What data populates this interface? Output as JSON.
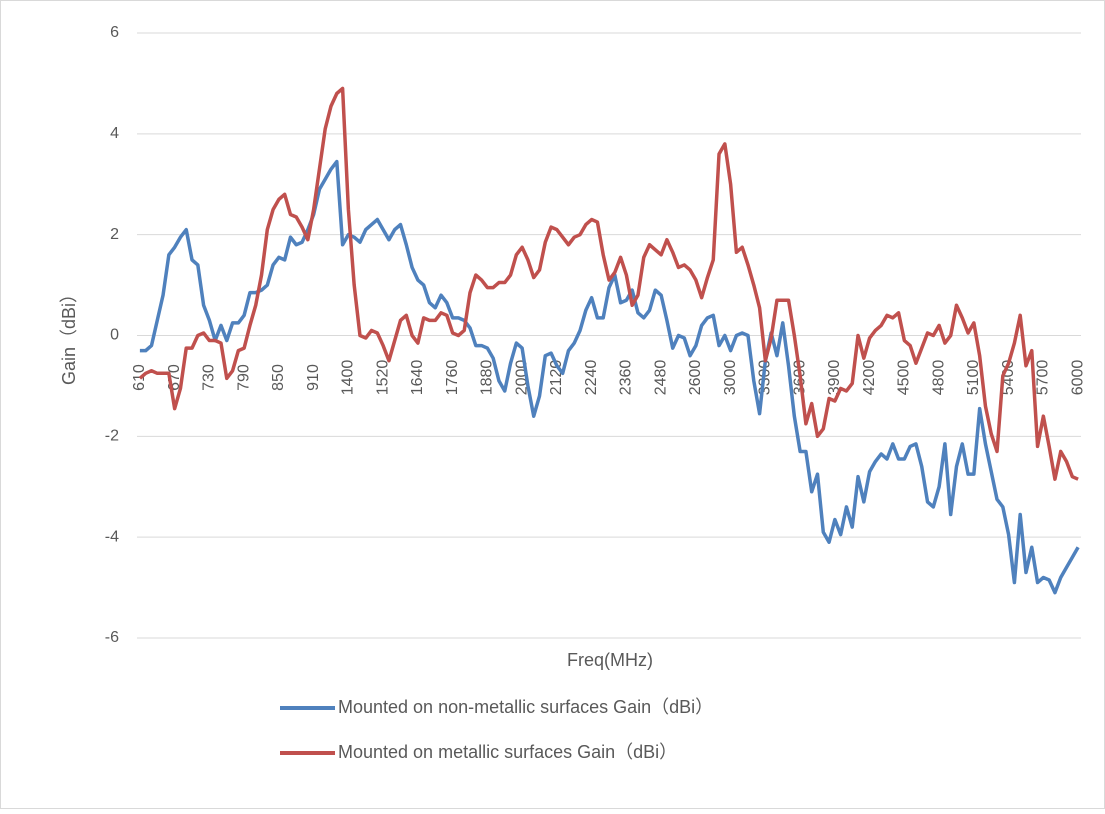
{
  "chart_data": {
    "type": "line",
    "x_label": "Freq(MHz)",
    "y_label": "Gain（dBi）",
    "categories": [
      "610",
      null,
      null,
      null,
      null,
      null,
      "670",
      null,
      null,
      null,
      null,
      null,
      "730",
      null,
      null,
      null,
      null,
      null,
      "790",
      null,
      null,
      null,
      null,
      null,
      "850",
      null,
      null,
      null,
      null,
      null,
      "910",
      null,
      null,
      null,
      null,
      null,
      "1400",
      null,
      null,
      null,
      null,
      null,
      "1520",
      null,
      null,
      null,
      null,
      null,
      "1640",
      null,
      null,
      null,
      null,
      null,
      "1760",
      null,
      null,
      null,
      null,
      null,
      "1880",
      null,
      null,
      null,
      null,
      null,
      "2000",
      null,
      null,
      null,
      null,
      null,
      "2120",
      null,
      null,
      null,
      null,
      null,
      "2240",
      null,
      null,
      null,
      null,
      null,
      "2360",
      null,
      null,
      null,
      null,
      null,
      "2480",
      null,
      null,
      null,
      null,
      null,
      "2600",
      null,
      null,
      null,
      null,
      null,
      "3000",
      null,
      null,
      null,
      null,
      null,
      "3300",
      null,
      null,
      null,
      null,
      null,
      "3600",
      null,
      null,
      null,
      null,
      null,
      "3900",
      null,
      null,
      null,
      null,
      null,
      "4200",
      null,
      null,
      null,
      null,
      null,
      "4500",
      null,
      null,
      null,
      null,
      null,
      "4800",
      null,
      null,
      null,
      null,
      null,
      "5100",
      null,
      null,
      null,
      null,
      null,
      "5400",
      null,
      null,
      null,
      null,
      null,
      "5700",
      null,
      null,
      null,
      null,
      null,
      "6000"
    ],
    "series": [
      {
        "name": "Mounted on non-metallic surfaces Gain（dBi）",
        "color": "#4f81bd",
        "values": [
          -0.3,
          -0.3,
          -0.2,
          0.3,
          0.8,
          1.6,
          1.75,
          1.95,
          2.1,
          1.5,
          1.4,
          0.6,
          0.3,
          -0.1,
          0.2,
          -0.1,
          0.25,
          0.25,
          0.4,
          0.85,
          0.85,
          0.9,
          1.0,
          1.4,
          1.55,
          1.5,
          1.95,
          1.8,
          1.85,
          2.1,
          2.4,
          2.9,
          3.1,
          3.3,
          3.45,
          1.8,
          2.0,
          1.95,
          1.85,
          2.1,
          2.2,
          2.3,
          2.1,
          1.9,
          2.1,
          2.2,
          1.8,
          1.35,
          1.1,
          1.0,
          0.65,
          0.55,
          0.8,
          0.65,
          0.35,
          0.35,
          0.3,
          0.15,
          -0.2,
          -0.2,
          -0.25,
          -0.45,
          -0.9,
          -1.1,
          -0.55,
          -0.15,
          -0.25,
          -1.0,
          -1.6,
          -1.2,
          -0.4,
          -0.35,
          -0.6,
          -0.75,
          -0.3,
          -0.15,
          0.1,
          0.5,
          0.75,
          0.35,
          0.35,
          0.95,
          1.2,
          0.65,
          0.7,
          0.9,
          0.45,
          0.35,
          0.5,
          0.9,
          0.8,
          0.3,
          -0.25,
          0.0,
          -0.05,
          -0.4,
          -0.2,
          0.2,
          0.35,
          0.4,
          -0.2,
          0.0,
          -0.3,
          0.0,
          0.05,
          0.0,
          -0.9,
          -1.55,
          -0.5,
          0.05,
          -0.4,
          0.25,
          -0.6,
          -1.6,
          -2.3,
          -2.3,
          -3.1,
          -2.75,
          -3.9,
          -4.1,
          -3.65,
          -3.95,
          -3.4,
          -3.8,
          -2.8,
          -3.3,
          -2.7,
          -2.5,
          -2.35,
          -2.45,
          -2.15,
          -2.45,
          -2.45,
          -2.2,
          -2.15,
          -2.6,
          -3.3,
          -3.4,
          -3.0,
          -2.15,
          -3.55,
          -2.6,
          -2.15,
          -2.75,
          -2.75,
          -1.45,
          -2.15,
          -2.7,
          -3.25,
          -3.4,
          -3.95,
          -4.9,
          -3.55,
          -4.7,
          -4.2,
          -4.9,
          -4.8,
          -4.85,
          -5.1,
          -4.8,
          -4.6,
          -4.4,
          -4.2
        ]
      },
      {
        "name": "Mounted on metallic surfaces Gain（dBi）",
        "color": "#c0504d",
        "values": [
          -0.85,
          -0.75,
          -0.7,
          -0.75,
          -0.75,
          -0.75,
          -1.45,
          -1.05,
          -0.25,
          -0.25,
          0.0,
          0.05,
          -0.1,
          -0.1,
          -0.15,
          -0.85,
          -0.7,
          -0.3,
          -0.25,
          0.2,
          0.6,
          1.2,
          2.1,
          2.5,
          2.7,
          2.8,
          2.4,
          2.35,
          2.15,
          1.9,
          2.5,
          3.3,
          4.1,
          4.55,
          4.8,
          4.9,
          2.5,
          1.0,
          0.0,
          -0.05,
          0.1,
          0.05,
          -0.2,
          -0.5,
          -0.1,
          0.3,
          0.4,
          0.0,
          -0.15,
          0.35,
          0.3,
          0.3,
          0.45,
          0.4,
          0.05,
          0.0,
          0.1,
          0.85,
          1.2,
          1.1,
          0.95,
          0.95,
          1.05,
          1.05,
          1.2,
          1.6,
          1.75,
          1.5,
          1.15,
          1.3,
          1.85,
          2.15,
          2.1,
          1.95,
          1.8,
          1.95,
          2.0,
          2.2,
          2.3,
          2.25,
          1.6,
          1.1,
          1.25,
          1.55,
          1.2,
          0.6,
          0.8,
          1.55,
          1.8,
          1.7,
          1.6,
          1.9,
          1.65,
          1.35,
          1.4,
          1.3,
          1.1,
          0.75,
          1.15,
          1.5,
          3.6,
          3.8,
          3.0,
          1.65,
          1.75,
          1.4,
          1.0,
          0.55,
          -0.5,
          -0.05,
          0.7,
          0.7,
          0.7,
          0.0,
          -0.8,
          -1.75,
          -1.35,
          -2.0,
          -1.85,
          -1.25,
          -1.3,
          -1.05,
          -1.1,
          -0.95,
          0.0,
          -0.45,
          -0.05,
          0.1,
          0.2,
          0.4,
          0.35,
          0.45,
          -0.1,
          -0.2,
          -0.55,
          -0.25,
          0.05,
          0.0,
          0.2,
          -0.15,
          0.0,
          0.6,
          0.35,
          0.05,
          0.25,
          -0.4,
          -1.4,
          -1.95,
          -2.3,
          -0.8,
          -0.55,
          -0.15,
          0.4,
          -0.6,
          -0.3,
          -2.2,
          -1.6,
          -2.2,
          -2.85,
          -2.3,
          -2.5,
          -2.8,
          -2.85
        ]
      }
    ],
    "ylim": [
      -6,
      6
    ],
    "yticks": [
      -6,
      -4,
      -2,
      0,
      2,
      4,
      6
    ],
    "grid": true,
    "legend": "bottom"
  }
}
